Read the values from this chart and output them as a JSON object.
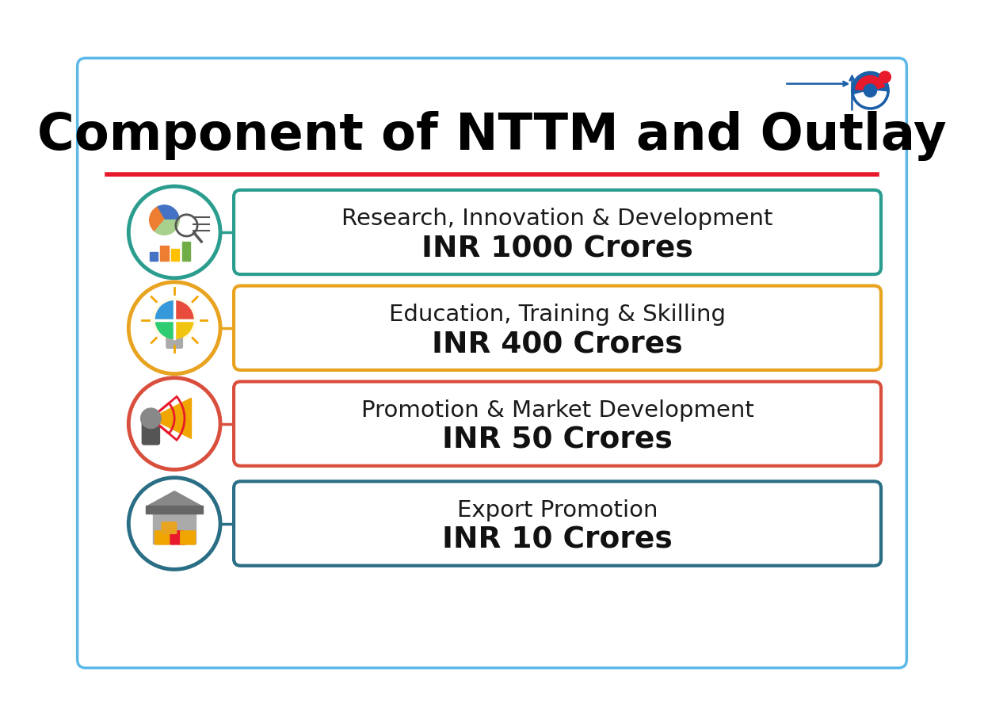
{
  "title": "Component of NTTM and Outlay",
  "title_fontsize": 46,
  "title_fontweight": "bold",
  "background_color": "#ffffff",
  "border_color": "#5bb8e8",
  "red_line_color": "#e8192c",
  "components": [
    {
      "label": "Research, Innovation & Development",
      "amount": "INR 1000 Crores",
      "box_color": "#2a9d8f",
      "circle_color": "#2a9d8f"
    },
    {
      "label": "Education, Training & Skilling",
      "amount": "INR 400 Crores",
      "box_color": "#e8a320",
      "circle_color": "#e8a320"
    },
    {
      "label": "Promotion & Market Development",
      "amount": "INR 50 Crores",
      "box_color": "#d94f3d",
      "circle_color": "#d94f3d"
    },
    {
      "label": "Export Promotion",
      "amount": "INR 10 Crores",
      "box_color": "#2a6e85",
      "circle_color": "#2a6e85"
    }
  ],
  "label_fontsize": 21,
  "amount_fontsize": 27,
  "amount_fontweight": "bold"
}
